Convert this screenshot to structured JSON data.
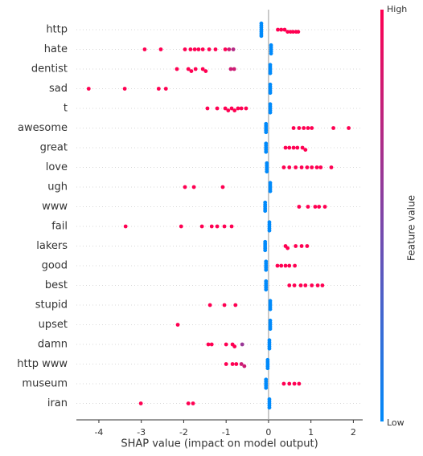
{
  "chart_data": {
    "type": "beeswarm",
    "xlabel": "SHAP value (impact on model output)",
    "xlim": [
      -4.53,
      2.22
    ],
    "xticks": [
      -4,
      -3,
      -2,
      -1,
      0,
      1,
      2
    ],
    "colorbar": {
      "label": "Feature value",
      "high": "High",
      "low": "Low",
      "low_color": "#008afb",
      "high_color": "#ff0052"
    },
    "features": [
      {
        "name": "http",
        "values": [
          -0.17,
          -0.17,
          -0.17,
          -0.17,
          -0.17,
          -0.17,
          -0.17,
          0.22,
          0.3,
          0.38,
          0.45,
          0.52,
          0.58,
          0.65,
          0.7
        ],
        "feature_values": [
          0,
          0,
          0,
          0,
          0,
          0,
          0,
          1,
          1,
          1,
          1,
          1,
          1,
          1,
          1
        ]
      },
      {
        "name": "hate",
        "values": [
          0.06,
          0.06,
          0.06,
          0.06,
          0.06,
          -2.92,
          -2.54,
          -1.97,
          -1.84,
          -1.74,
          -1.65,
          -1.55,
          -1.4,
          -1.25,
          -1.02,
          -0.93,
          -0.83
        ],
        "feature_values": [
          0,
          0,
          0,
          0,
          0,
          1,
          1,
          1,
          1,
          1,
          1,
          1,
          1,
          1,
          1,
          0.8,
          0.7
        ]
      },
      {
        "name": "dentist",
        "values": [
          0.04,
          0.04,
          0.04,
          0.04,
          0.04,
          -2.16,
          -1.89,
          -1.82,
          -1.72,
          -1.55,
          -1.48,
          -0.89,
          -0.81
        ],
        "feature_values": [
          0,
          0,
          0,
          0,
          0,
          1,
          1,
          1,
          1,
          1,
          1,
          0.8,
          0.8
        ]
      },
      {
        "name": "sad",
        "values": [
          0.04,
          0.04,
          0.04,
          0.04,
          0.04,
          -4.24,
          -3.39,
          -2.59,
          -2.42
        ],
        "feature_values": [
          0,
          0,
          0,
          0,
          0,
          1,
          1,
          1,
          1
        ]
      },
      {
        "name": "t",
        "values": [
          0.04,
          0.04,
          0.04,
          0.04,
          0.04,
          -1.44,
          -1.21,
          -1.02,
          -0.95,
          -0.87,
          -0.8,
          -0.72,
          -0.64,
          -0.53
        ],
        "feature_values": [
          0,
          0,
          0,
          0,
          0,
          1,
          1,
          1,
          1,
          1,
          1,
          1,
          1,
          1
        ]
      },
      {
        "name": "awesome",
        "values": [
          -0.06,
          -0.06,
          -0.06,
          -0.06,
          -0.06,
          0.59,
          0.72,
          0.83,
          0.93,
          1.02,
          1.53,
          1.89
        ],
        "feature_values": [
          0,
          0,
          0,
          0,
          0,
          1,
          1,
          1,
          1,
          1,
          1,
          1
        ]
      },
      {
        "name": "great",
        "values": [
          -0.06,
          -0.06,
          -0.06,
          -0.06,
          -0.06,
          0.4,
          0.49,
          0.59,
          0.68,
          0.8,
          0.87
        ],
        "feature_values": [
          0,
          0,
          0,
          0,
          0,
          1,
          1,
          1,
          1,
          1,
          1
        ]
      },
      {
        "name": "love",
        "values": [
          -0.04,
          -0.04,
          -0.04,
          -0.04,
          -0.04,
          0.36,
          0.49,
          0.64,
          0.78,
          0.91,
          1.02,
          1.14,
          1.23,
          1.48
        ],
        "feature_values": [
          0,
          0,
          0,
          0,
          0,
          1,
          1,
          1,
          1,
          1,
          1,
          1,
          1,
          1
        ]
      },
      {
        "name": "ugh",
        "values": [
          0.04,
          0.04,
          0.04,
          0.04,
          0.04,
          -1.97,
          -1.76,
          -1.08
        ],
        "feature_values": [
          0,
          0,
          0,
          0,
          0,
          1,
          1,
          1
        ]
      },
      {
        "name": "www",
        "values": [
          -0.08,
          -0.08,
          -0.08,
          -0.08,
          -0.08,
          0.72,
          0.93,
          1.1,
          1.19,
          1.33
        ],
        "feature_values": [
          0,
          0,
          0,
          0,
          0,
          1,
          1,
          1,
          1,
          1
        ]
      },
      {
        "name": "fail",
        "values": [
          0.02,
          0.02,
          0.02,
          0.02,
          0.02,
          -3.37,
          -2.06,
          -1.57,
          -1.34,
          -1.21,
          -1.04,
          -0.87
        ],
        "feature_values": [
          0,
          0,
          0,
          0,
          0,
          1,
          1,
          1,
          1,
          1,
          1,
          1
        ]
      },
      {
        "name": "lakers",
        "values": [
          -0.08,
          -0.08,
          -0.08,
          -0.08,
          -0.08,
          0.4,
          0.45,
          0.64,
          0.78,
          0.91
        ],
        "feature_values": [
          0,
          0,
          0,
          0,
          0,
          1,
          1,
          1,
          1,
          1
        ]
      },
      {
        "name": "good",
        "values": [
          -0.06,
          -0.06,
          -0.06,
          -0.06,
          -0.06,
          0.21,
          0.3,
          0.4,
          0.49,
          0.62
        ],
        "feature_values": [
          0,
          0,
          0,
          0,
          0,
          1,
          1,
          1,
          1,
          1
        ]
      },
      {
        "name": "best",
        "values": [
          -0.06,
          -0.06,
          -0.06,
          -0.06,
          -0.06,
          0.49,
          0.61,
          0.76,
          0.87,
          1.02,
          1.16,
          1.27
        ],
        "feature_values": [
          0,
          0,
          0,
          0,
          0,
          1,
          1,
          1,
          1,
          1,
          1,
          1
        ]
      },
      {
        "name": "stupid",
        "values": [
          0.04,
          0.04,
          0.04,
          0.04,
          0.04,
          -1.38,
          -1.04,
          -0.78
        ],
        "feature_values": [
          0,
          0,
          0,
          0,
          0,
          1,
          1,
          1
        ]
      },
      {
        "name": "upset",
        "values": [
          0.04,
          0.04,
          0.04,
          0.04,
          0.04,
          -2.14
        ],
        "feature_values": [
          0,
          0,
          0,
          0,
          0,
          1
        ]
      },
      {
        "name": "damn",
        "values": [
          0.02,
          0.02,
          0.02,
          0.02,
          0.02,
          -1.42,
          -1.34,
          -1.0,
          -0.85,
          -0.8,
          -0.62
        ],
        "feature_values": [
          0,
          0,
          0,
          0,
          0,
          1,
          1,
          1,
          1,
          1,
          0.6
        ]
      },
      {
        "name": "http www",
        "values": [
          -0.02,
          -0.02,
          -0.02,
          -0.02,
          -0.02,
          -1.0,
          -0.85,
          -0.76,
          -0.64,
          -0.57
        ],
        "feature_values": [
          0,
          0,
          0,
          0,
          0,
          1,
          1,
          1,
          0.8,
          0.8
        ]
      },
      {
        "name": "museum",
        "values": [
          -0.06,
          -0.06,
          -0.06,
          -0.06,
          -0.06,
          0.36,
          0.49,
          0.61,
          0.72
        ],
        "feature_values": [
          0,
          0,
          0,
          0,
          0,
          1,
          1,
          1,
          1
        ]
      },
      {
        "name": "iran",
        "values": [
          0.02,
          0.02,
          0.02,
          0.02,
          0.02,
          -3.01,
          -1.89,
          -1.78
        ],
        "feature_values": [
          0,
          0,
          0,
          0,
          0,
          1,
          1,
          1
        ]
      }
    ]
  }
}
